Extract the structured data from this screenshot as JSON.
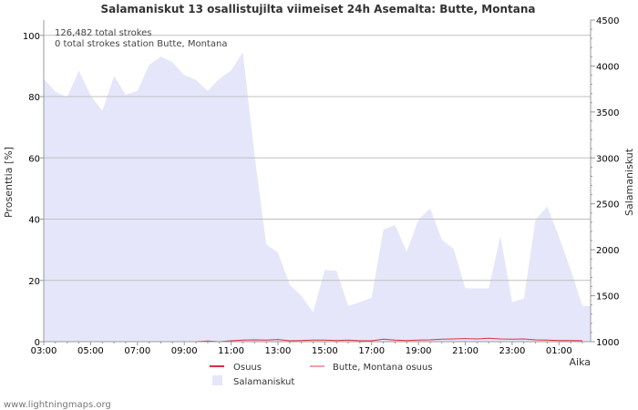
{
  "chart_data": {
    "type": "area",
    "title": "Salamaniskut 13 osallistujilta viimeiset 24h Asemalta: Butte, Montana",
    "xlabel": "Aika",
    "ylabel_left": "Prosenttia   [%]",
    "ylabel_right": "Salamaniskut",
    "ylim_left": [
      0,
      105
    ],
    "ylim_right": [
      1000,
      4500
    ],
    "left_ticks": [
      "0",
      "20",
      "40",
      "60",
      "80",
      "100"
    ],
    "right_ticks": [
      "1000",
      "1500",
      "2000",
      "2500",
      "3000",
      "3500",
      "4000",
      "4500"
    ],
    "x_tick_labels": [
      "03:00",
      "05:00",
      "07:00",
      "09:00",
      "11:00",
      "13:00",
      "15:00",
      "17:00",
      "19:00",
      "21:00",
      "23:00",
      "01:00"
    ],
    "x_hours": [
      0,
      0.5,
      1,
      1.5,
      2,
      2.5,
      3,
      3.5,
      4,
      4.5,
      5,
      5.5,
      6,
      6.5,
      7,
      7.5,
      8,
      8.5,
      9,
      9.5,
      10,
      10.5,
      11,
      11.5,
      12,
      12.5,
      13,
      13.5,
      14,
      14.5,
      15,
      15.5,
      16,
      16.5,
      17,
      17.5,
      18,
      18.5,
      19,
      19.5,
      20,
      20.5,
      21,
      21.5,
      22,
      22.5,
      23
    ],
    "info_lines": [
      "126,482 total strokes",
      "0 total strokes station Butte, Montana"
    ],
    "series": [
      {
        "name": "Salamaniskut",
        "axis": "right",
        "color": "#e6e6fa",
        "values": [
          3860,
          3720,
          3660,
          3950,
          3680,
          3510,
          3890,
          3690,
          3730,
          4010,
          4100,
          4040,
          3900,
          3850,
          3730,
          3860,
          3950,
          4150,
          3030,
          2060,
          1970,
          1620,
          1500,
          1320,
          1780,
          1770,
          1390,
          1430,
          1480,
          2220,
          2270,
          1980,
          2330,
          2450,
          2110,
          2010,
          1580,
          1580,
          1580,
          2150,
          1430,
          1470,
          2330,
          2470,
          2140,
          1780,
          1390
        ]
      },
      {
        "name": "Osuus",
        "axis": "left",
        "color": "#d93040",
        "values": [
          0,
          0,
          0,
          0,
          0,
          0,
          0,
          0,
          0,
          0,
          0,
          0,
          0,
          0,
          0.2,
          0,
          0.3,
          0.5,
          0.6,
          0.5,
          0.7,
          0.3,
          0.4,
          0.5,
          0.5,
          0.4,
          0.5,
          0.3,
          0.3,
          0.8,
          0.5,
          0.4,
          0.5,
          0.6,
          0.8,
          0.9,
          1.0,
          0.9,
          1.1,
          0.9,
          0.8,
          0.9,
          0.6,
          0.5,
          0.4,
          0.4,
          0.3
        ]
      },
      {
        "name": "Butte, Montana osuus",
        "axis": "left",
        "color": "#f0a0a8",
        "values": []
      }
    ],
    "legend": [
      "Osuus",
      "Butte, Montana osuus",
      "Salamaniskut"
    ],
    "footer": "www.lightningmaps.org"
  }
}
